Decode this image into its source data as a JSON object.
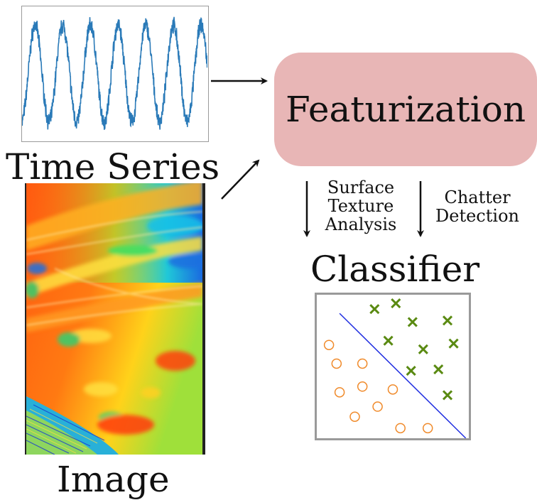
{
  "labels": {
    "time_series": "Time Series",
    "image": "Image",
    "featurization": "Featurization",
    "classifier": "Classifier",
    "surface_texture_analysis": [
      "Surface",
      "Texture",
      "Analysis"
    ],
    "chatter_detection": [
      "Chatter",
      "Detection"
    ]
  },
  "colors": {
    "signal_line": "#2a7ab8",
    "featurization_fill": "#e8b6b6",
    "panel_border": "#9a9a9a",
    "decision_boundary": "#1f2de0",
    "class_circle": "#f08a2a",
    "class_cross": "#5a8a12"
  },
  "classifier_points": {
    "circles": [
      [
        0.08,
        0.35
      ],
      [
        0.13,
        0.48
      ],
      [
        0.3,
        0.48
      ],
      [
        0.15,
        0.68
      ],
      [
        0.3,
        0.64
      ],
      [
        0.5,
        0.66
      ],
      [
        0.4,
        0.78
      ],
      [
        0.25,
        0.85
      ],
      [
        0.55,
        0.93
      ],
      [
        0.73,
        0.93
      ]
    ],
    "crosses": [
      [
        0.38,
        0.1
      ],
      [
        0.52,
        0.06
      ],
      [
        0.63,
        0.19
      ],
      [
        0.86,
        0.18
      ],
      [
        0.47,
        0.32
      ],
      [
        0.7,
        0.38
      ],
      [
        0.9,
        0.34
      ],
      [
        0.62,
        0.53
      ],
      [
        0.8,
        0.52
      ],
      [
        0.86,
        0.7
      ]
    ],
    "boundary": [
      [
        0.15,
        0.13
      ],
      [
        0.98,
        1.0
      ]
    ]
  }
}
